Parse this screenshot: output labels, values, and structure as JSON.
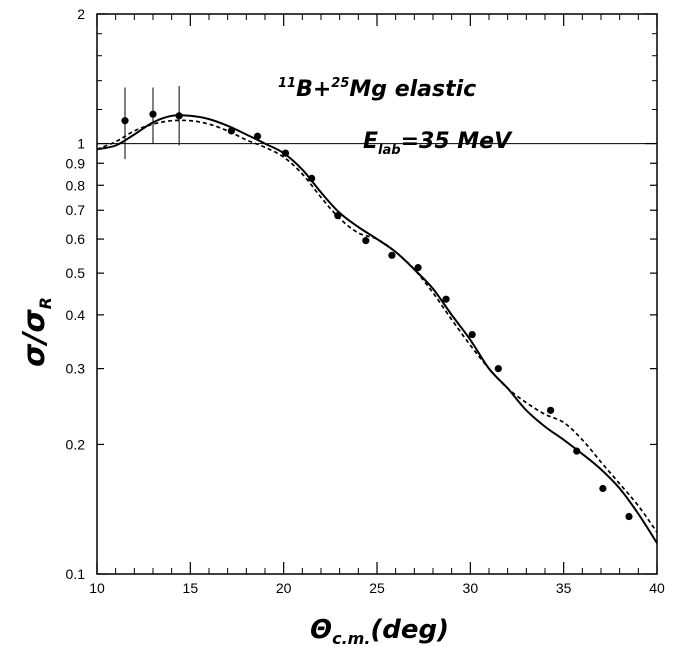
{
  "chart_data": {
    "type": "scatter",
    "title": "",
    "annotations": {
      "reaction": {
        "pre1": "11",
        "pre2": "B+",
        "pre3": "25",
        "main": "Mg elastic"
      },
      "energy": {
        "main": "E",
        "sub": "lab",
        "rest": "=35 MeV"
      }
    },
    "xlabel": {
      "main": "Θ",
      "sub": "c.m.",
      "rest": "(deg)"
    },
    "ylabel": {
      "main": "σ/σ",
      "sub": "R"
    },
    "xlim": [
      10,
      40
    ],
    "ylim": [
      0.1,
      2
    ],
    "yscale": "log",
    "grid": false,
    "x_ticks": [
      10,
      15,
      20,
      25,
      30,
      35,
      40
    ],
    "x_tick_labels": [
      "10",
      "15",
      "20",
      "25",
      "30",
      "35",
      "40"
    ],
    "y_ticks": [
      0.1,
      0.2,
      0.3,
      0.4,
      0.5,
      0.6,
      0.7,
      0.8,
      0.9,
      1,
      2
    ],
    "y_tick_labels": [
      "0.1",
      "0.2",
      "0.3",
      "0.4",
      "0.5",
      "0.6",
      "0.7",
      "0.8",
      "0.9",
      "1",
      "2"
    ],
    "reference_line_y": 1,
    "series": [
      {
        "style": "points",
        "points": [
          {
            "x": 11.5,
            "y": 1.13,
            "err_lo": 0.92,
            "err_hi": 1.35
          },
          {
            "x": 13.0,
            "y": 1.17,
            "err_lo": 1.0,
            "err_hi": 1.35
          },
          {
            "x": 14.4,
            "y": 1.16,
            "err_lo": 0.99,
            "err_hi": 1.36
          },
          {
            "x": 17.2,
            "y": 1.07
          },
          {
            "x": 18.6,
            "y": 1.04
          },
          {
            "x": 20.1,
            "y": 0.95
          },
          {
            "x": 21.5,
            "y": 0.83
          },
          {
            "x": 22.9,
            "y": 0.68
          },
          {
            "x": 24.4,
            "y": 0.595
          },
          {
            "x": 25.8,
            "y": 0.55
          },
          {
            "x": 27.2,
            "y": 0.515
          },
          {
            "x": 28.7,
            "y": 0.435
          },
          {
            "x": 30.1,
            "y": 0.36
          },
          {
            "x": 31.5,
            "y": 0.3
          },
          {
            "x": 34.3,
            "y": 0.24
          },
          {
            "x": 35.7,
            "y": 0.193
          },
          {
            "x": 37.1,
            "y": 0.158
          },
          {
            "x": 38.5,
            "y": 0.136
          }
        ]
      },
      {
        "style": "solid",
        "x": [
          10,
          11,
          12,
          13,
          14,
          15,
          16,
          17,
          18,
          19,
          20,
          21,
          22,
          23,
          24,
          25,
          26,
          27,
          28,
          29,
          30,
          31,
          32,
          33,
          34,
          35,
          36,
          37,
          38,
          39,
          40
        ],
        "y": [
          0.97,
          0.99,
          1.05,
          1.12,
          1.16,
          1.16,
          1.14,
          1.1,
          1.05,
          1.0,
          0.95,
          0.87,
          0.77,
          0.69,
          0.64,
          0.6,
          0.56,
          0.51,
          0.46,
          0.4,
          0.35,
          0.3,
          0.27,
          0.24,
          0.22,
          0.205,
          0.19,
          0.175,
          0.158,
          0.138,
          0.118
        ]
      },
      {
        "style": "dashed",
        "x": [
          10,
          11,
          12,
          13,
          14,
          15,
          16,
          17,
          18,
          19,
          20,
          21,
          22,
          23,
          24,
          25,
          26,
          27,
          28,
          29,
          30,
          31,
          32,
          33,
          34,
          35,
          36,
          37,
          38,
          39,
          40
        ],
        "y": [
          0.97,
          1.01,
          1.07,
          1.11,
          1.13,
          1.13,
          1.11,
          1.07,
          1.02,
          0.98,
          0.93,
          0.85,
          0.75,
          0.67,
          0.62,
          0.6,
          0.56,
          0.51,
          0.45,
          0.39,
          0.34,
          0.3,
          0.27,
          0.25,
          0.235,
          0.225,
          0.205,
          0.182,
          0.162,
          0.144,
          0.125
        ]
      }
    ]
  }
}
